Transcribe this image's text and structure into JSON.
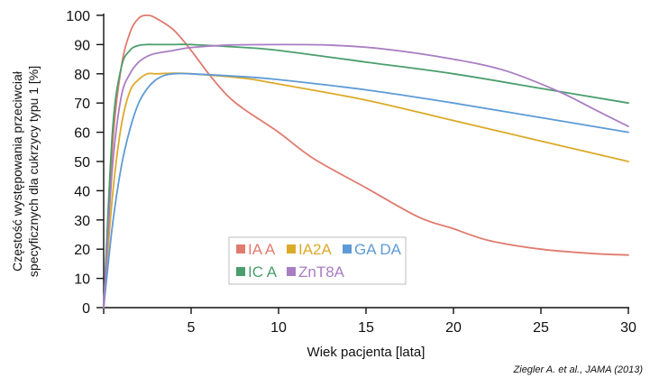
{
  "chart_data": {
    "type": "line",
    "xlabel": "Wiek pacjenta [lata]",
    "ylabel_lines": [
      "Częstość występowania przeciwciał",
      "specyficznych dla cukrzycy typu 1 [%]"
    ],
    "xlim": [
      0,
      30
    ],
    "ylim": [
      0,
      100
    ],
    "x_ticks": [
      5,
      10,
      15,
      20,
      25,
      30
    ],
    "y_ticks": [
      0,
      10,
      20,
      30,
      40,
      50,
      60,
      70,
      80,
      90,
      100
    ],
    "grid": false,
    "legend_position": "bottom-center",
    "series": [
      {
        "name": "IA A",
        "color": "#e07b6f",
        "x": [
          0,
          0.5,
          1,
          1.5,
          2,
          2.5,
          3,
          4,
          5,
          6,
          7,
          8,
          10,
          12,
          15,
          18,
          20,
          22,
          25,
          28,
          30
        ],
        "y": [
          0,
          55,
          82,
          94,
          99,
          100,
          99,
          95,
          88,
          80,
          73,
          68,
          60,
          51,
          41,
          31,
          27,
          23,
          20,
          18.5,
          18
        ]
      },
      {
        "name": "IA2A",
        "color": "#dcaa2a",
        "x": [
          0,
          0.5,
          1,
          1.5,
          2,
          2.5,
          3,
          4,
          5,
          8,
          10,
          15,
          20,
          25,
          30
        ],
        "y": [
          0,
          38,
          62,
          74,
          78,
          80,
          80,
          80.2,
          80,
          78.5,
          76.5,
          71,
          64,
          57,
          50
        ]
      },
      {
        "name": "GA DA",
        "color": "#5e9bd6",
        "x": [
          0,
          0.5,
          1,
          1.5,
          2,
          2.5,
          3,
          3.5,
          4,
          5,
          8,
          10,
          15,
          20,
          25,
          30
        ],
        "y": [
          0,
          28,
          48,
          61,
          70,
          75,
          78,
          79.5,
          80,
          80,
          79,
          78,
          74.5,
          70,
          65,
          60
        ]
      },
      {
        "name": "IC A",
        "color": "#4a9e6c",
        "x": [
          0,
          0.5,
          1,
          1.5,
          2,
          2.5,
          3,
          4,
          5,
          8,
          10,
          15,
          20,
          25,
          30
        ],
        "y": [
          0,
          60,
          82,
          88,
          89.7,
          90,
          90,
          90,
          90,
          89,
          88,
          84,
          80,
          75,
          70
        ]
      },
      {
        "name": "ZnT8A",
        "color": "#a97dc2",
        "x": [
          0,
          0.5,
          1,
          1.5,
          2,
          2.5,
          3,
          4,
          5,
          7,
          10,
          13,
          16,
          20,
          23,
          26,
          28,
          30
        ],
        "y": [
          0,
          48,
          72,
          80,
          84,
          86,
          87,
          88,
          89,
          89.8,
          90,
          89.8,
          88.5,
          85,
          81,
          74,
          68,
          62
        ]
      }
    ]
  },
  "source": "Ziegler A. et al., JAMA (2013)"
}
